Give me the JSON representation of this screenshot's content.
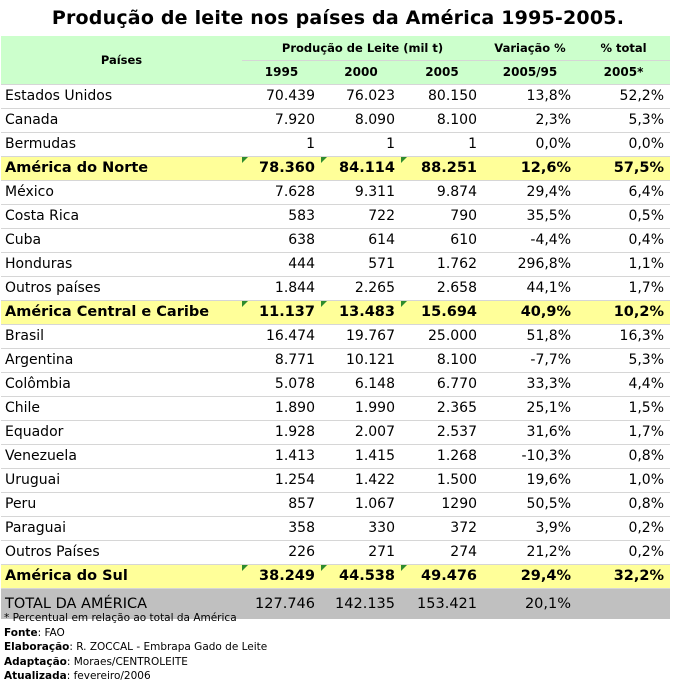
{
  "title": "Produção de leite nos países da América 1995-2005.",
  "header": {
    "countries": "Países",
    "production": "Produção de Leite (mil t)",
    "variation": "Variação %",
    "share": "% total",
    "year1": "1995",
    "year2": "2000",
    "year3": "2005",
    "variation_period": "2005/95",
    "share_year": "2005*"
  },
  "rows": [
    {
      "name": "Estados Unidos",
      "v1995": "70.439",
      "v2000": "76.023",
      "v2005": "80.150",
      "var": "13,8%",
      "share": "52,2%",
      "type": "country"
    },
    {
      "name": "Canada",
      "v1995": "7.920",
      "v2000": "8.090",
      "v2005": "8.100",
      "var": "2,3%",
      "share": "5,3%",
      "type": "country"
    },
    {
      "name": "Bermudas",
      "v1995": "1",
      "v2000": "1",
      "v2005": "1",
      "var": "0,0%",
      "share": "0,0%",
      "type": "country"
    },
    {
      "name": "América do Norte",
      "v1995": "78.360",
      "v2000": "84.114",
      "v2005": "88.251",
      "var": "12,6%",
      "share": "57,5%",
      "type": "total"
    },
    {
      "name": "México",
      "v1995": "7.628",
      "v2000": "9.311",
      "v2005": "9.874",
      "var": "29,4%",
      "share": "6,4%",
      "type": "country"
    },
    {
      "name": "Costa Rica",
      "v1995": "583",
      "v2000": "722",
      "v2005": "790",
      "var": "35,5%",
      "share": "0,5%",
      "type": "country"
    },
    {
      "name": "Cuba",
      "v1995": "638",
      "v2000": "614",
      "v2005": "610",
      "var": "-4,4%",
      "share": "0,4%",
      "type": "country"
    },
    {
      "name": "Honduras",
      "v1995": "444",
      "v2000": "571",
      "v2005": "1.762",
      "var": "296,8%",
      "share": "1,1%",
      "type": "country"
    },
    {
      "name": "Outros países",
      "v1995": "1.844",
      "v2000": "2.265",
      "v2005": "2.658",
      "var": "44,1%",
      "share": "1,7%",
      "type": "country"
    },
    {
      "name": "América Central e Caribe",
      "v1995": "11.137",
      "v2000": "13.483",
      "v2005": "15.694",
      "var": "40,9%",
      "share": "10,2%",
      "type": "total"
    },
    {
      "name": "Brasil",
      "v1995": "16.474",
      "v2000": "19.767",
      "v2005": "25.000",
      "var": "51,8%",
      "share": "16,3%",
      "type": "country"
    },
    {
      "name": "Argentina",
      "v1995": "8.771",
      "v2000": "10.121",
      "v2005": "8.100",
      "var": "-7,7%",
      "share": "5,3%",
      "type": "country"
    },
    {
      "name": "Colômbia",
      "v1995": "5.078",
      "v2000": "6.148",
      "v2005": "6.770",
      "var": "33,3%",
      "share": "4,4%",
      "type": "country"
    },
    {
      "name": "Chile",
      "v1995": "1.890",
      "v2000": "1.990",
      "v2005": "2.365",
      "var": "25,1%",
      "share": "1,5%",
      "type": "country"
    },
    {
      "name": "Equador",
      "v1995": "1.928",
      "v2000": "2.007",
      "v2005": "2.537",
      "var": "31,6%",
      "share": "1,7%",
      "type": "country"
    },
    {
      "name": "Venezuela",
      "v1995": "1.413",
      "v2000": "1.415",
      "v2005": "1.268",
      "var": "-10,3%",
      "share": "0,8%",
      "type": "country"
    },
    {
      "name": "Uruguai",
      "v1995": "1.254",
      "v2000": "1.422",
      "v2005": "1.500",
      "var": "19,6%",
      "share": "1,0%",
      "type": "country"
    },
    {
      "name": "Peru",
      "v1995": "857",
      "v2000": "1.067",
      "v2005": "1290",
      "var": "50,5%",
      "share": "0,8%",
      "type": "country"
    },
    {
      "name": "Paraguai",
      "v1995": "358",
      "v2000": "330",
      "v2005": "372",
      "var": "3,9%",
      "share": "0,2%",
      "type": "country"
    },
    {
      "name": "Outros Países",
      "v1995": "226",
      "v2000": "271",
      "v2005": "274",
      "var": "21,2%",
      "share": "0,2%",
      "type": "country"
    },
    {
      "name": "América do Sul",
      "v1995": "38.249",
      "v2000": "44.538",
      "v2005": "49.476",
      "var": "29,4%",
      "share": "32,2%",
      "type": "total"
    }
  ],
  "grand_total": {
    "name": "TOTAL DA AMÉRICA",
    "v1995": "127.746",
    "v2000": "142.135",
    "v2005": "153.421",
    "var": "20,1%",
    "share": ""
  },
  "notes": {
    "footnote": "* Percentual em relação ao total da América",
    "source_label": "Fonte",
    "source": ": FAO",
    "prepared_label": "Elaboração",
    "prepared": ": R. ZOCCAL - Embrapa Gado de Leite",
    "adapted_label": "Adaptação",
    "adapted": ": Moraes/CENTROLEITE",
    "updated_label": "Atualizada",
    "updated": ": fevereiro/2006"
  },
  "colors": {
    "header_bg": "#ccffcc",
    "subtotal_bg": "#ffff99",
    "grand_total_bg": "#c0c0c0",
    "marker": "#2e8b2e"
  }
}
